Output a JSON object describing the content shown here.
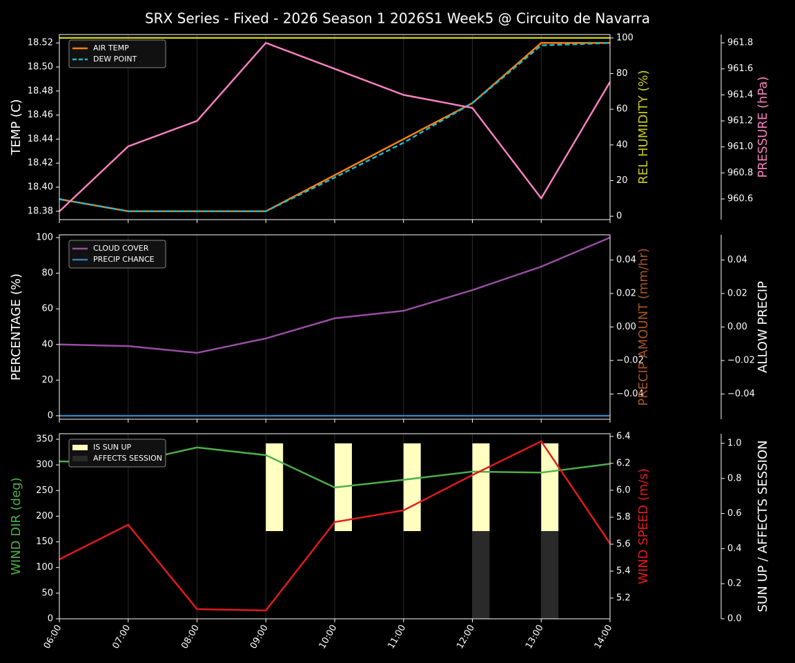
{
  "title": "SRX Series - Fixed - 2026 Season 1 2026S1 Week5 @ Circuito de Navarra",
  "chart_data": [
    {
      "type": "line",
      "ylabel": "TEMP (C)",
      "y2label": "REL HUMIDITY (%)",
      "y3label": "PRESSURE (hPa)",
      "ylabel_color": "#ffffff",
      "y2label_color": "#cccc22",
      "y3label_color": "#f781bf",
      "ylim": [
        18.373,
        18.527
      ],
      "yticks": [
        18.38,
        {
          "value": 18.4,
          "label": "18.40"
        },
        18.42,
        18.44,
        18.46,
        18.48,
        {
          "value": 18.5,
          "label": "18.50"
        },
        18.52
      ],
      "y2lim": [
        -1.9,
        101.9
      ],
      "y2ticks": [
        0,
        20,
        40,
        60,
        80,
        100
      ],
      "y3lim": [
        960.441,
        961.864
      ],
      "y3ticks": [
        960.6,
        960.8,
        {
          "value": 961,
          "label": "961.0"
        },
        961.2,
        961.4,
        961.6,
        961.8
      ],
      "grid": "x",
      "legend": "upper left",
      "series": [
        {
          "name": "AIR TEMP",
          "color": "#ff7f0e",
          "values": [
            18.39,
            18.38,
            18.38,
            18.38,
            18.41,
            18.44,
            18.47,
            18.52,
            18.52
          ]
        },
        {
          "name": "DEW POINT",
          "color": "#17becf",
          "linestyle": "dashed",
          "values": [
            18.39,
            18.38,
            18.38,
            18.38,
            18.408,
            18.437,
            18.47,
            18.518,
            18.52
          ]
        },
        {
          "color": "#cccc22",
          "axis": "y2",
          "values": [
            100,
            100,
            100,
            100,
            100,
            100,
            100,
            100,
            100
          ]
        },
        {
          "color": "#f781bf",
          "axis": "y3",
          "values": [
            960.504,
            961.004,
            961.2,
            961.8,
            961.6,
            961.4,
            961.3,
            960.605,
            961.5
          ]
        }
      ]
    },
    {
      "type": "line",
      "ylabel": "PERCENTAGE (%)",
      "y2label": "PRECIP AMOUNT (mm/hr)",
      "y3label": "ALLOW PRECIP",
      "ylabel_color": "#ffffff",
      "y2label_color": "#a65628",
      "y3label_color": "#ffffff",
      "ylim": [
        -1.94,
        101.55
      ],
      "yticks": [
        0,
        20,
        40,
        60,
        80,
        100
      ],
      "y2lim": [
        -0.055,
        0.055
      ],
      "y2ticks": [
        {
          "value": -0.04,
          "label": "−0.04"
        },
        {
          "value": -0.02,
          "label": "−0.02"
        },
        {
          "value": 0,
          "label": "0.00"
        },
        {
          "value": 0.02,
          "label": "0.02"
        },
        {
          "value": 0.04,
          "label": "0.04"
        }
      ],
      "y3lim": [
        -0.055,
        0.055
      ],
      "y3ticks": [
        {
          "value": -0.04,
          "label": "−0.04"
        },
        {
          "value": -0.02,
          "label": "−0.02"
        },
        {
          "value": 0,
          "label": "0.00"
        },
        {
          "value": 0.02,
          "label": "0.02"
        },
        {
          "value": 0.04,
          "label": "0.04"
        }
      ],
      "grid": "x",
      "legend": "upper left",
      "series": [
        {
          "name": "CLOUD COVER",
          "color": "#984ea3",
          "values": [
            40,
            39.1,
            35.3,
            43.4,
            54.7,
            58.9,
            70.5,
            83.7,
            100
          ]
        },
        {
          "name": "PRECIP CHANCE",
          "color": "#377eb8",
          "values": [
            0,
            0,
            0,
            0,
            0,
            0,
            0,
            0,
            0
          ]
        }
      ]
    },
    {
      "type": "line",
      "ylabel": "WIND DIR (deg)",
      "y2label": "WIND SPEED (m/s)",
      "y3label": "SUN UP / AFFECTS SESSION",
      "ylabel_color": "#4daf4a",
      "y2label_color": "#e41a1c",
      "y3label_color": "#ffffff",
      "categories": [
        "06:00",
        "07:00",
        "08:00",
        "09:00",
        "10:00",
        "11:00",
        "12:00",
        "13:00",
        "14:00"
      ],
      "ylim": [
        0,
        360.8
      ],
      "yticks": [
        0,
        50,
        100,
        150,
        200,
        250,
        300,
        350
      ],
      "y2lim": [
        5.046,
        6.42
      ],
      "y2ticks": [
        {
          "value": 5.2,
          "label": "5.2"
        },
        {
          "value": 5.4,
          "label": "5.4"
        },
        {
          "value": 5.6,
          "label": "5.6"
        },
        {
          "value": 5.8,
          "label": "5.8"
        },
        {
          "value": 6,
          "label": "6.0"
        },
        {
          "value": 6.2,
          "label": "6.2"
        },
        6.4
      ],
      "y3lim": [
        0,
        1.055
      ],
      "y3ticks": [
        {
          "value": 0,
          "label": "0.0"
        },
        {
          "value": 0.2,
          "label": "0.2"
        },
        {
          "value": 0.4,
          "label": "0.4"
        },
        {
          "value": 0.6,
          "label": "0.6"
        },
        {
          "value": 0.8,
          "label": "0.8"
        },
        {
          "value": 1,
          "label": "1.0"
        }
      ],
      "grid": "x",
      "legend": "upper left",
      "series": [
        {
          "name": "IS SUN UP",
          "kind": "bar",
          "color": "#ffffc0",
          "axis": "y3",
          "values": [
            0,
            0,
            0,
            1,
            1,
            1,
            1,
            1,
            0
          ]
        },
        {
          "name": "AFFECTS SESSION",
          "kind": "bar",
          "color": "#2a2a2a",
          "axis": "y3",
          "values": [
            0,
            0,
            0,
            0,
            0,
            0,
            0.5,
            0.5,
            0
          ]
        },
        {
          "color": "#4daf4a",
          "values": [
            307,
            304,
            334,
            319,
            256,
            271,
            287,
            285,
            302
          ]
        },
        {
          "color": "#e41a1c",
          "axis": "y2",
          "values": [
            5.487,
            5.744,
            5.118,
            5.108,
            5.764,
            5.851,
            6.113,
            6.364,
            5.605
          ]
        }
      ]
    }
  ]
}
